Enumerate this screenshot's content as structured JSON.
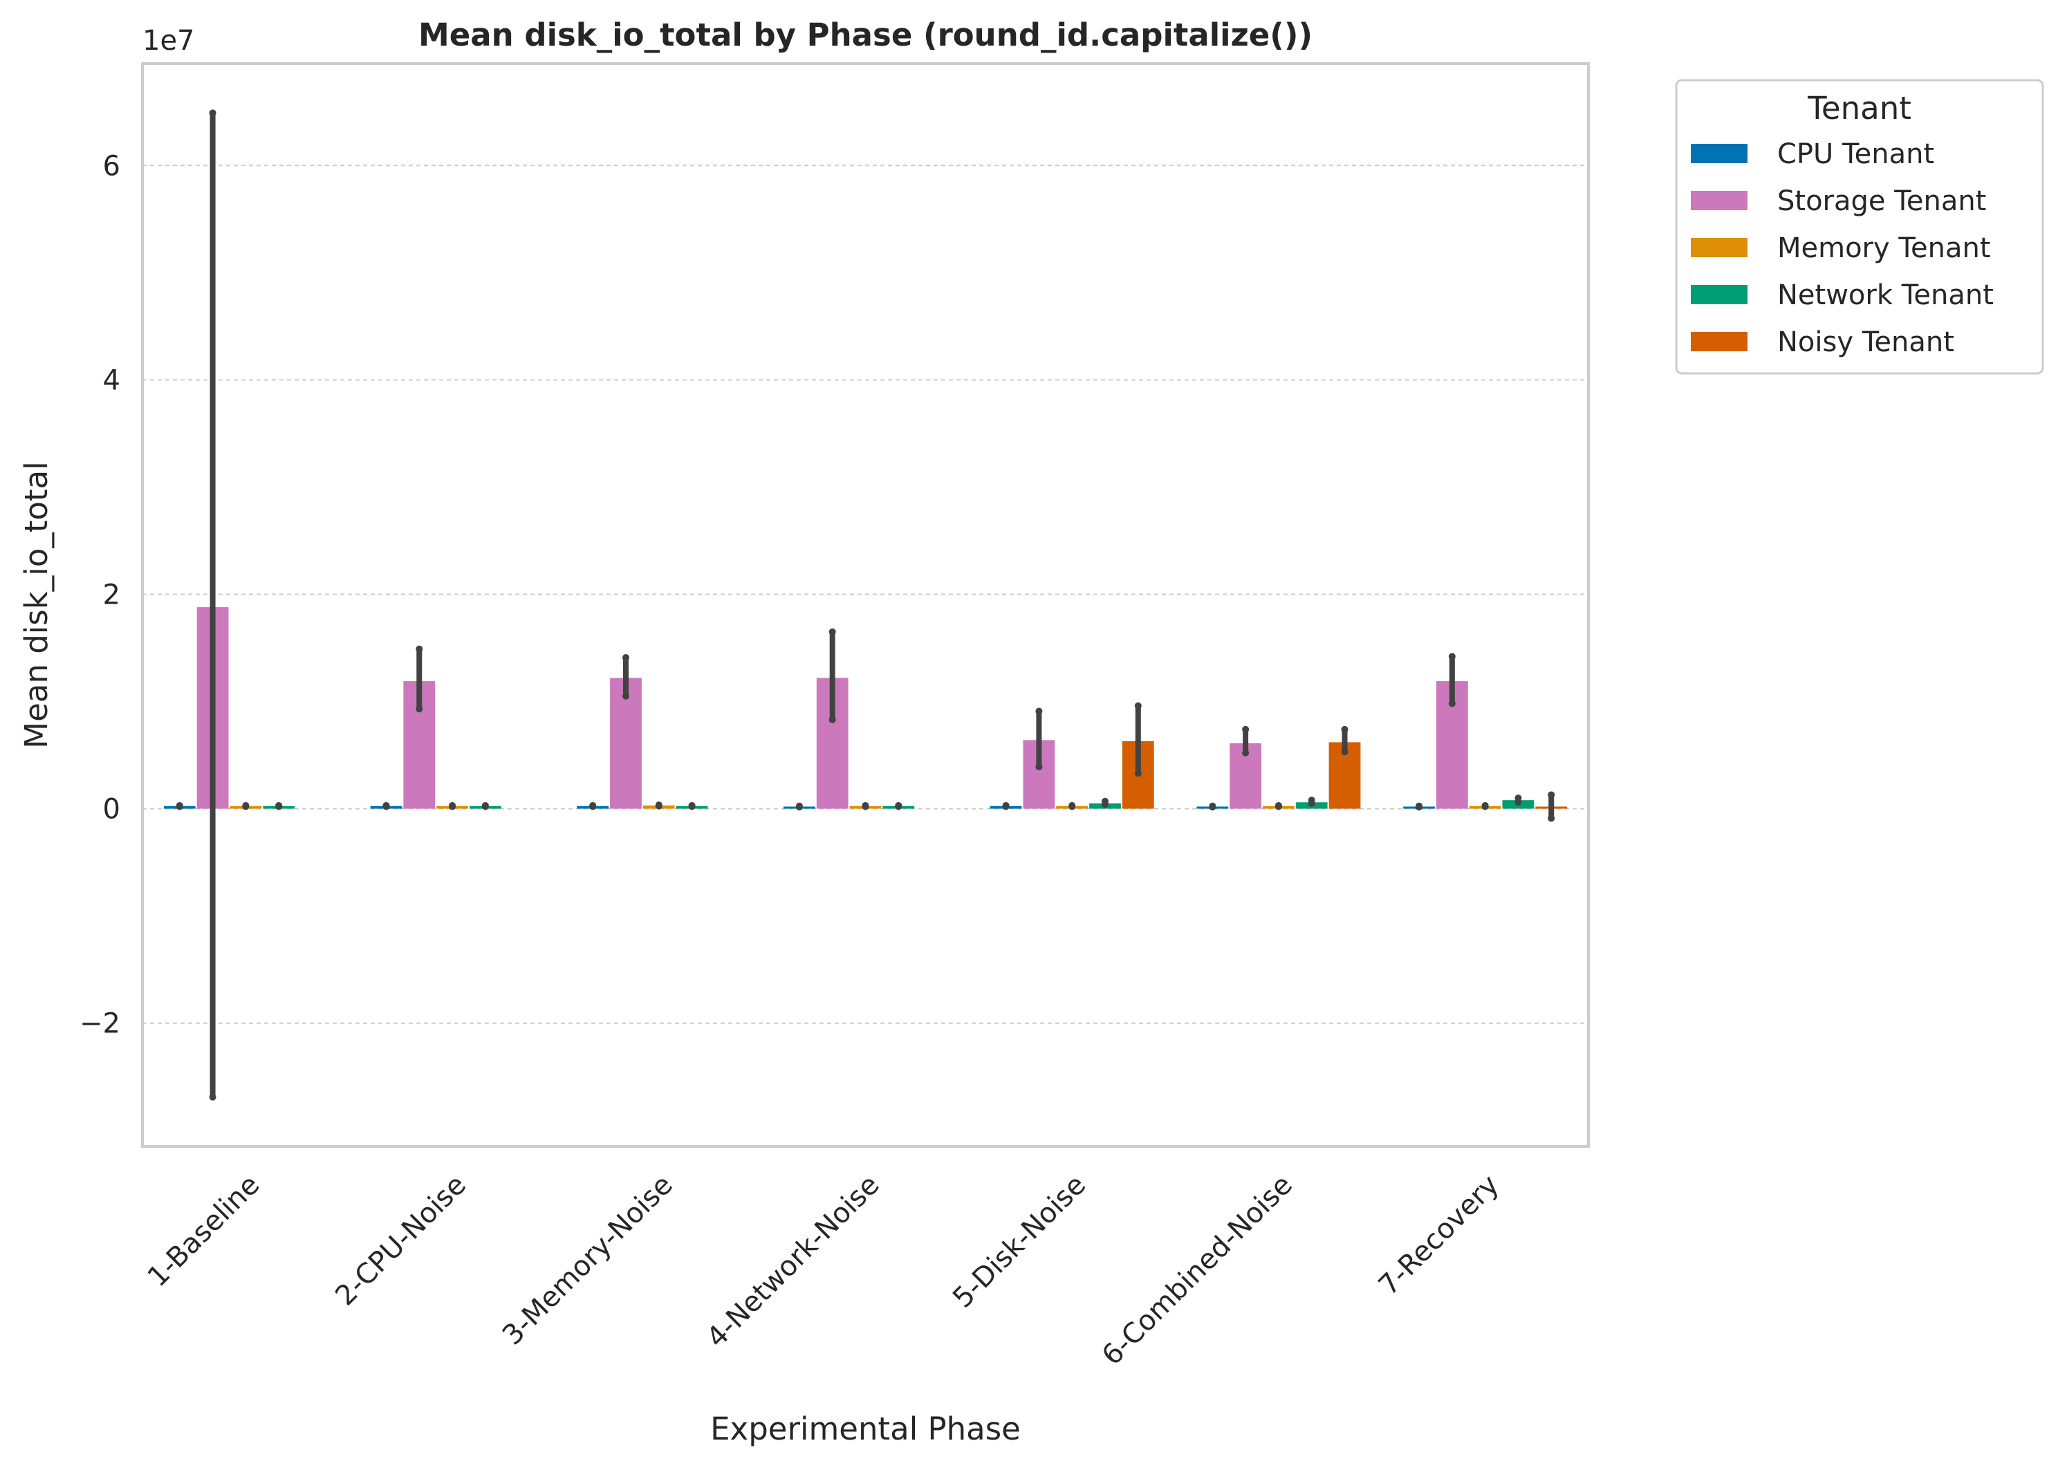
{
  "chart_data": {
    "type": "bar",
    "title": "Mean disk_io_total by Phase (round_id.capitalize())",
    "xlabel": "Experimental Phase",
    "ylabel": "Mean disk_io_total",
    "y_offset_label": "1e7",
    "y_scale_factor": 10000000,
    "ylim": [
      -31500000,
      69500000
    ],
    "yticks": [
      -20000000,
      0,
      20000000,
      40000000,
      60000000
    ],
    "ytick_labels": [
      "−2",
      "0",
      "2",
      "4",
      "6"
    ],
    "grid": "horizontal dashed",
    "legend_title": "Tenant",
    "legend_position": "outside top-right",
    "categories": [
      "1-Baseline",
      "2-CPU-Noise",
      "3-Memory-Noise",
      "4-Network-Noise",
      "5-Disk-Noise",
      "6-Combined-Noise",
      "7-Recovery"
    ],
    "series": [
      {
        "name": "CPU Tenant",
        "color": "#0173b2",
        "values": [
          250000,
          250000,
          250000,
          200000,
          250000,
          200000,
          200000
        ],
        "err_low": [
          200000,
          200000,
          200000,
          150000,
          200000,
          150000,
          150000
        ],
        "err_high": [
          300000,
          300000,
          300000,
          250000,
          300000,
          250000,
          250000
        ]
      },
      {
        "name": "Storage Tenant",
        "color": "#cc78bc",
        "values": [
          18800000,
          11900000,
          12200000,
          12200000,
          6400000,
          6100000,
          11900000
        ],
        "err_low": [
          -26900000,
          9300000,
          10500000,
          8300000,
          3900000,
          5200000,
          9800000
        ],
        "err_high": [
          64900000,
          14900000,
          14100000,
          16500000,
          9100000,
          7400000,
          14200000
        ]
      },
      {
        "name": "Memory Tenant",
        "color": "#de8f05",
        "values": [
          250000,
          250000,
          300000,
          250000,
          250000,
          250000,
          250000
        ],
        "err_low": [
          200000,
          200000,
          250000,
          200000,
          200000,
          200000,
          200000
        ],
        "err_high": [
          300000,
          300000,
          350000,
          300000,
          300000,
          300000,
          300000
        ]
      },
      {
        "name": "Network Tenant",
        "color": "#029e73",
        "values": [
          250000,
          250000,
          250000,
          250000,
          500000,
          600000,
          800000
        ],
        "err_low": [
          200000,
          200000,
          200000,
          200000,
          400000,
          500000,
          600000
        ],
        "err_high": [
          300000,
          300000,
          300000,
          300000,
          700000,
          800000,
          1000000
        ]
      },
      {
        "name": "Noisy Tenant",
        "color": "#d55e00",
        "values": [
          0,
          0,
          0,
          0,
          6300000,
          6200000,
          200000
        ],
        "err_low": [
          0,
          0,
          0,
          0,
          3300000,
          5300000,
          -900000
        ],
        "err_high": [
          0,
          0,
          0,
          0,
          9600000,
          7400000,
          1300000
        ]
      }
    ]
  }
}
